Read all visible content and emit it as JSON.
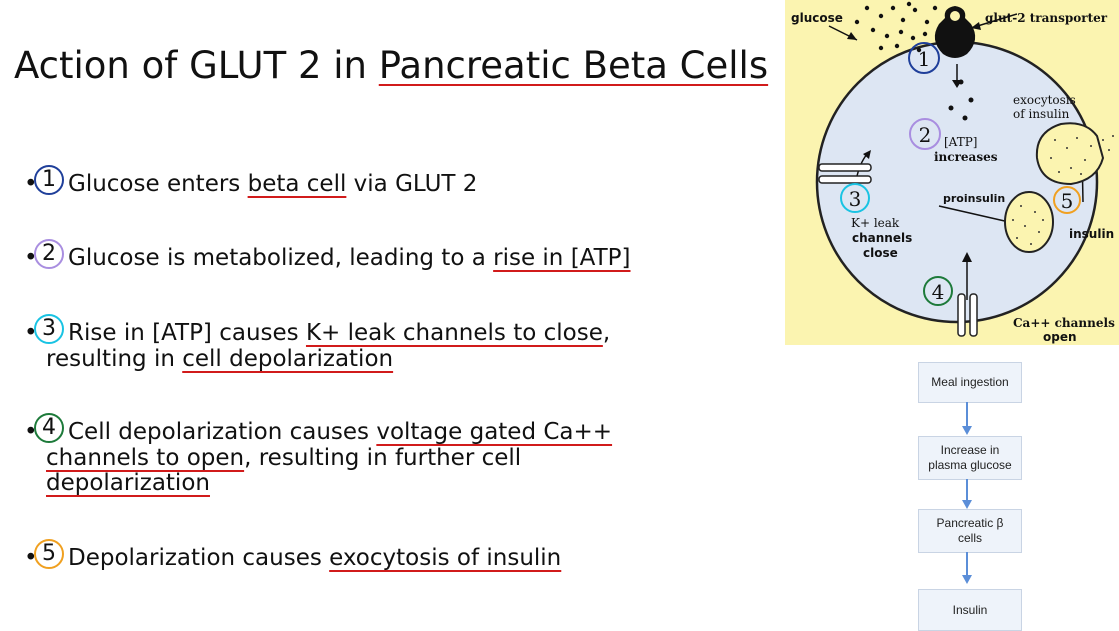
{
  "slide": {
    "title_prefix": "Action of GLUT 2 in ",
    "title_underlined": "Pancreatic Beta Cells"
  },
  "bullets": [
    {
      "num": "1",
      "color": "#1f3f9a",
      "parts": [
        "Glucose enters ",
        "beta cell",
        " via GLUT 2"
      ]
    },
    {
      "num": "2",
      "color": "#a98ee0",
      "parts": [
        "Glucose is metabolized, leading to a ",
        "rise in [ATP]"
      ]
    },
    {
      "num": "3",
      "color": "#19c3e3",
      "parts": [
        "Rise in [ATP] causes ",
        "K+ leak channels to close",
        ","
      ],
      "line2": [
        "resulting in ",
        "cell depolarization"
      ]
    },
    {
      "num": "4",
      "color": "#1d7a3a",
      "parts": [
        "Cell depolarization causes ",
        "voltage gated Ca++"
      ],
      "line2": [
        "channels to open",
        ", resulting in further cell"
      ],
      "line3": [
        "depolarization"
      ]
    },
    {
      "num": "5",
      "color": "#f0a020",
      "parts": [
        "Depolarization causes ",
        "exocytosis of insulin"
      ]
    }
  ],
  "diagram": {
    "labels": {
      "glucose": "glucose",
      "glut2": "glut-2 transporter",
      "exocytosis_1": "exocytosis",
      "exocytosis_2": "of insulin",
      "atp": "[ATP]",
      "increases": "increases",
      "proinsulin": "proinsulin",
      "insulin": "insulin",
      "k_1": "K+ leak",
      "k_2": "channels",
      "k_3": "close",
      "ca_1": "Ca++ channels",
      "ca_2": "open"
    },
    "markers": [
      "1",
      "2",
      "3",
      "4",
      "5"
    ],
    "colors": {
      "background": "#fbf4b0",
      "cell": "#dde6f3"
    }
  },
  "flowchart": {
    "steps": [
      {
        "line1": "Meal ingestion",
        "line2": ""
      },
      {
        "line1": "Increase in",
        "line2": "plasma glucose"
      },
      {
        "line1": "Pancreatic β",
        "line2": "cells"
      },
      {
        "line1": "Insulin",
        "line2": ""
      }
    ]
  }
}
